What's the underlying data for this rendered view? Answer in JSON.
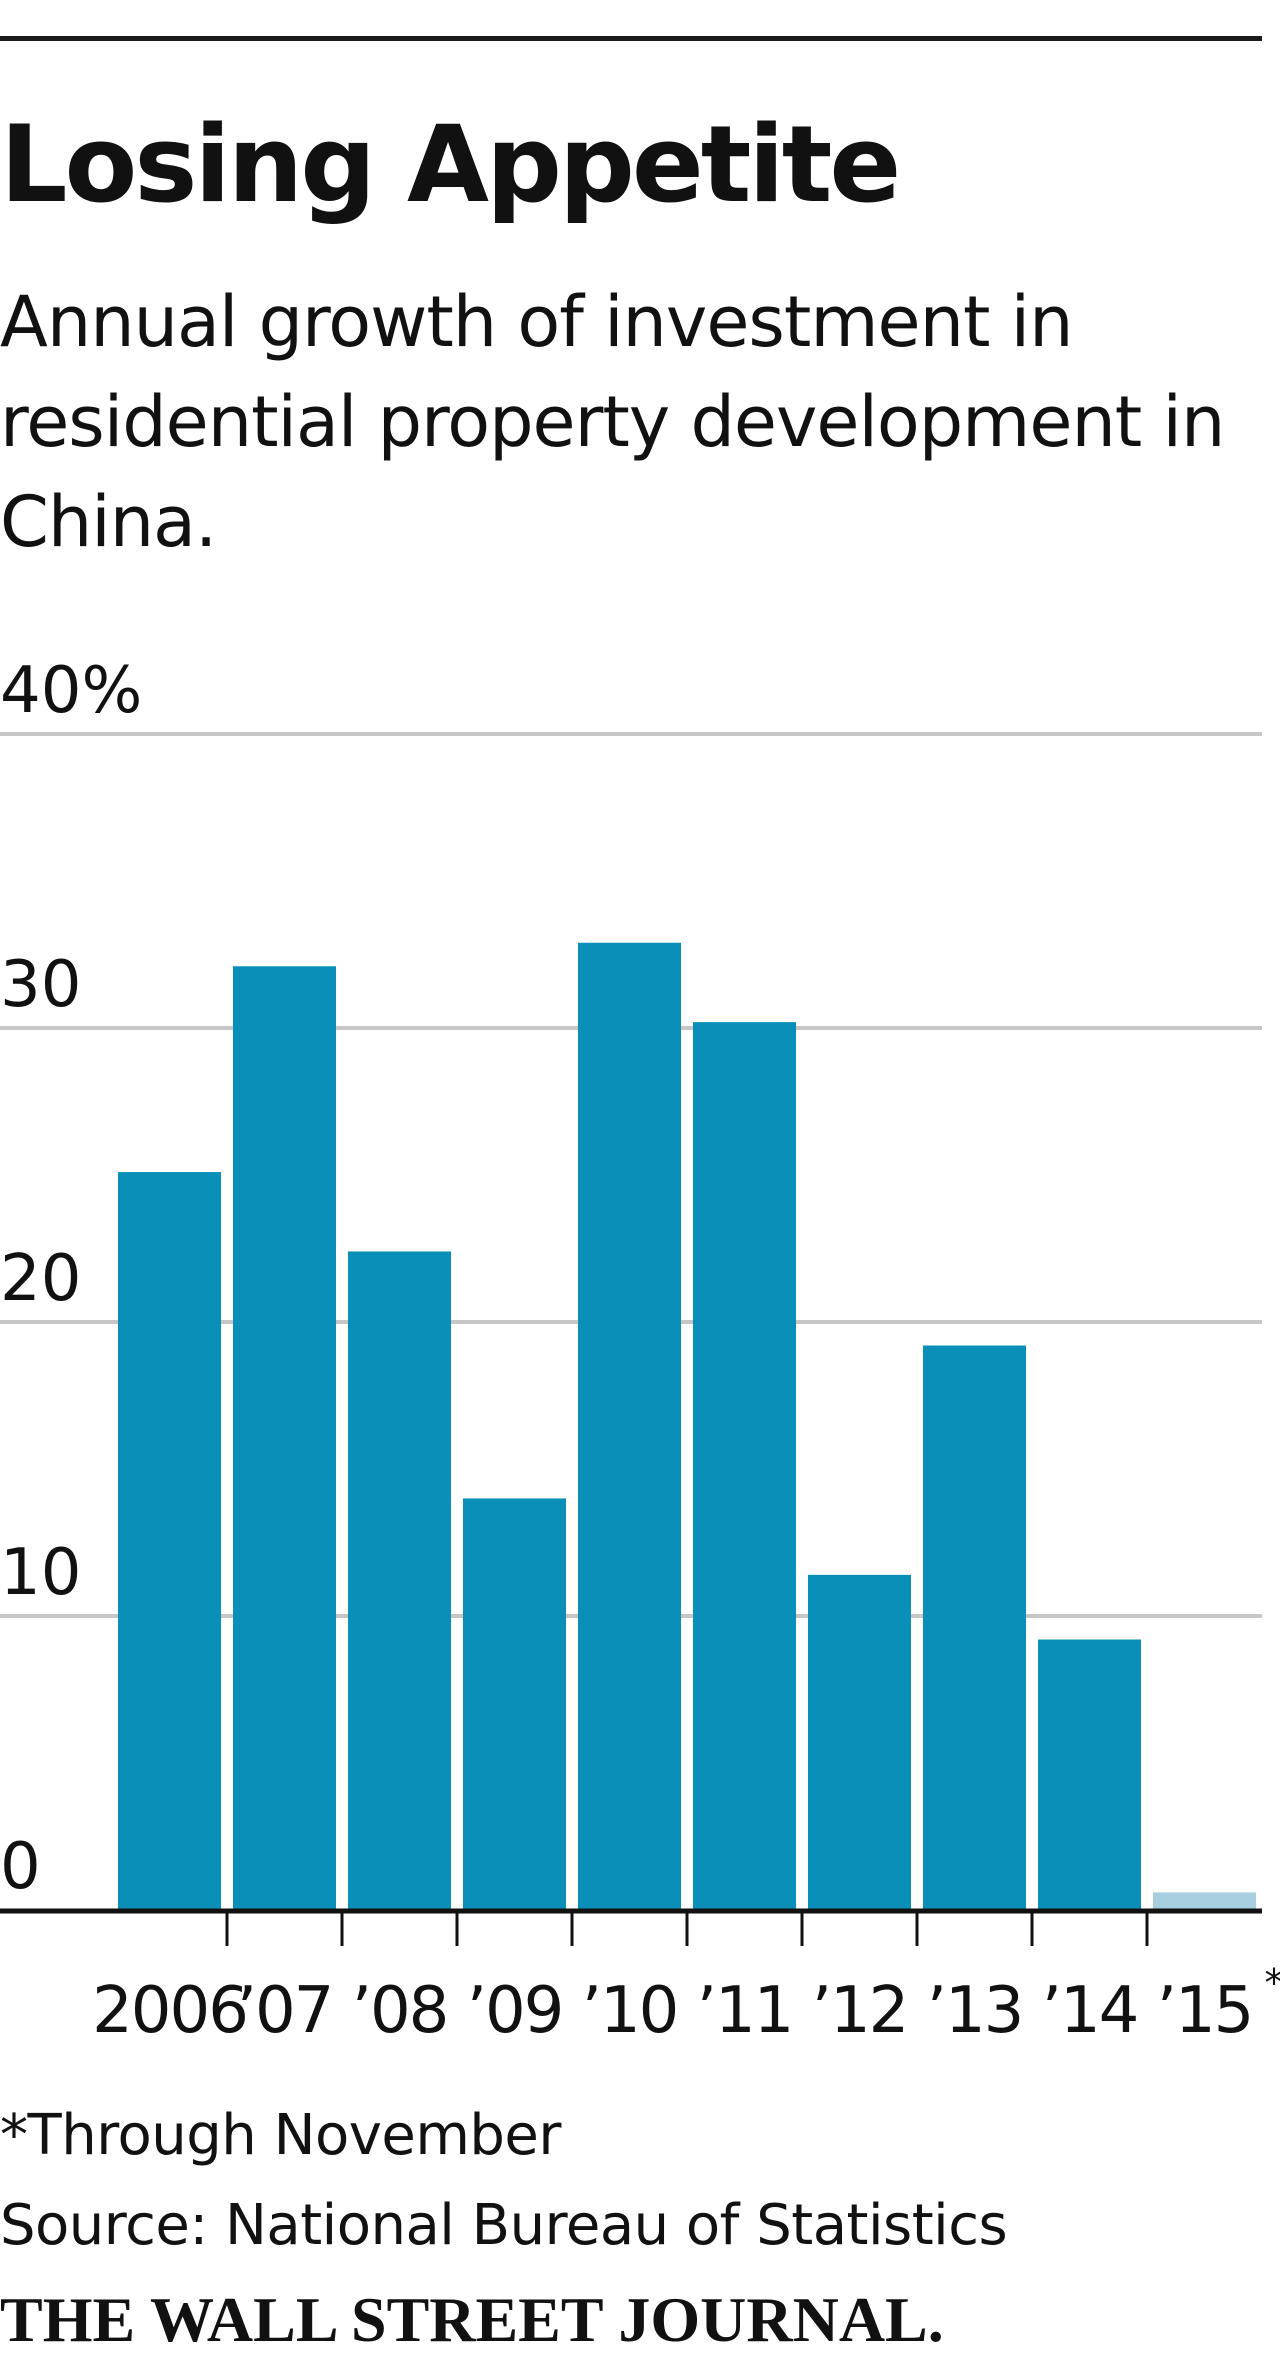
{
  "title": "Losing Appetite",
  "subtitle": "Annual growth of investment in residential property development in China.",
  "footnote": "*Through November",
  "source": "Source: National Bureau of Statistics",
  "publisher": "THE WALL STREET JOURNAL.",
  "colors": {
    "bar": "#0a8fb8",
    "bar_estimate": "#a8cfe0",
    "gridline": "#c6c6c6",
    "axis": "#111111"
  },
  "chart_data": {
    "type": "bar",
    "categories": [
      "2006",
      "'07",
      "'08",
      "'09",
      "'10",
      "'11",
      "'12",
      "'13",
      "'14",
      "'15"
    ],
    "category_labels": [
      "2006",
      "’07",
      "’08",
      "’09",
      "’10",
      "’11",
      "’12",
      "’13",
      "’14",
      "’15"
    ],
    "category_note_marks": [
      "",
      "",
      "",
      "",
      "",
      "",
      "",
      "",
      "",
      "*"
    ],
    "values": [
      25.1,
      32.1,
      22.4,
      14.0,
      32.9,
      30.2,
      11.4,
      19.2,
      9.2,
      0.6
    ],
    "highlighted_categories": [
      "'15"
    ],
    "ylim": [
      0,
      40
    ],
    "yticks": [
      0,
      10,
      20,
      30,
      40
    ],
    "ytick_labels": [
      "0",
      "10",
      "20",
      "30",
      "40%"
    ],
    "grid": true,
    "xlabel": "",
    "ylabel": ""
  }
}
